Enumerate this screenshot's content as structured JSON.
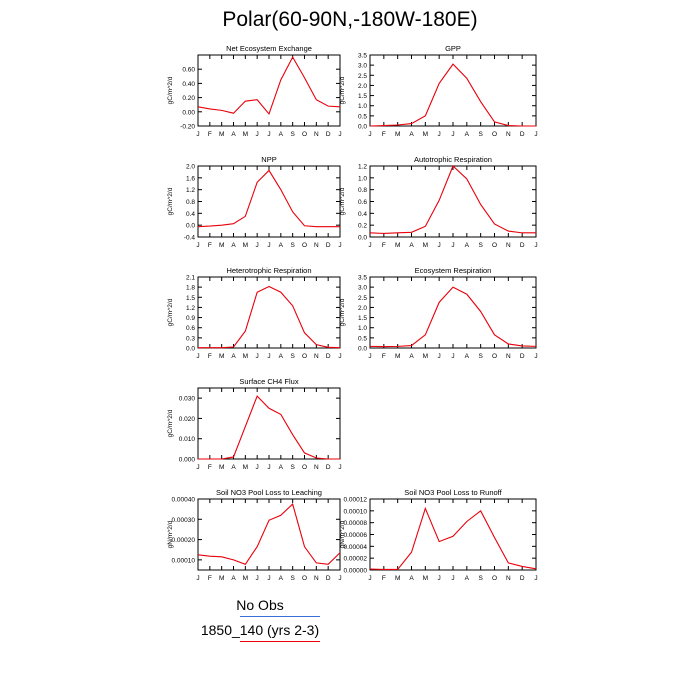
{
  "title": "Polar(60-90N,-180W-180E)",
  "months": [
    "J",
    "F",
    "M",
    "A",
    "M",
    "J",
    "J",
    "A",
    "S",
    "O",
    "N",
    "D",
    "J"
  ],
  "colors": {
    "line": "#e8000b",
    "obs": "#3b6fd8",
    "axis": "#000000"
  },
  "legend": [
    {
      "label": "No Obs",
      "color": "#3b6fd8"
    },
    {
      "label": "1850_140 (yrs 2-3)",
      "color": "#e8000b"
    }
  ],
  "chart_data": [
    {
      "type": "line",
      "title": "Net Ecosystem Exchange",
      "ylabel": "gC/m^2/d",
      "ylim": [
        -0.2,
        0.8
      ],
      "yticks": [
        -0.2,
        0.0,
        0.2,
        0.4,
        0.6
      ],
      "ytick_labels": [
        "-0.20",
        "0.00",
        "0.20",
        "0.40",
        "0.60"
      ],
      "values": [
        0.07,
        0.04,
        0.02,
        -0.02,
        0.15,
        0.17,
        -0.03,
        0.45,
        0.77,
        0.48,
        0.17,
        0.08,
        0.07
      ]
    },
    {
      "type": "line",
      "title": "GPP",
      "ylabel": "gC/m^2/d",
      "ylim": [
        0,
        3.5
      ],
      "yticks": [
        0,
        0.5,
        1.0,
        1.5,
        2.0,
        2.5,
        3.0,
        3.5
      ],
      "ytick_labels": [
        "0.0",
        "0.5",
        "1.0",
        "1.5",
        "2.0",
        "2.5",
        "3.0",
        "3.5"
      ],
      "values": [
        0.0,
        0.02,
        0.05,
        0.12,
        0.5,
        2.1,
        3.05,
        2.35,
        1.2,
        0.2,
        0.02,
        0.0,
        0.0
      ]
    },
    {
      "type": "line",
      "title": "NPP",
      "ylabel": "gC/m^2/d",
      "ylim": [
        -0.4,
        2.0
      ],
      "yticks": [
        -0.4,
        0.0,
        0.4,
        0.8,
        1.2,
        1.6,
        2.0
      ],
      "ytick_labels": [
        "-0.4",
        "0.0",
        "0.4",
        "0.8",
        "1.2",
        "1.6",
        "2.0"
      ],
      "values": [
        -0.05,
        -0.03,
        0.0,
        0.05,
        0.3,
        1.45,
        1.85,
        1.2,
        0.45,
        -0.02,
        -0.05,
        -0.05,
        -0.05
      ]
    },
    {
      "type": "line",
      "title": "Autotrophic Respiration",
      "ylabel": "gC/m^2/d",
      "ylim": [
        0,
        1.2
      ],
      "yticks": [
        0,
        0.2,
        0.4,
        0.6,
        0.8,
        1.0,
        1.2
      ],
      "ytick_labels": [
        "0.0",
        "0.2",
        "0.4",
        "0.6",
        "0.8",
        "1.0",
        "1.2"
      ],
      "values": [
        0.07,
        0.06,
        0.07,
        0.08,
        0.18,
        0.62,
        1.2,
        0.98,
        0.55,
        0.22,
        0.1,
        0.07,
        0.07
      ]
    },
    {
      "type": "line",
      "title": "Heterotrophic Respiration",
      "ylabel": "gC/m^2/d",
      "ylim": [
        0,
        2.1
      ],
      "yticks": [
        0,
        0.3,
        0.6,
        0.9,
        1.2,
        1.5,
        1.8,
        2.1
      ],
      "ytick_labels": [
        "0.0",
        "0.3",
        "0.6",
        "0.9",
        "1.2",
        "1.5",
        "1.8",
        "2.1"
      ],
      "values": [
        0.01,
        0.01,
        0.01,
        0.03,
        0.5,
        1.65,
        1.82,
        1.65,
        1.25,
        0.45,
        0.1,
        0.02,
        0.01
      ]
    },
    {
      "type": "line",
      "title": "Ecosystem Respiration",
      "ylabel": "gC/m^2/d",
      "ylim": [
        0,
        3.5
      ],
      "yticks": [
        0,
        0.5,
        1.0,
        1.5,
        2.0,
        2.5,
        3.0,
        3.5
      ],
      "ytick_labels": [
        "0.0",
        "0.5",
        "1.0",
        "1.5",
        "2.0",
        "2.5",
        "3.0",
        "3.5"
      ],
      "values": [
        0.08,
        0.07,
        0.08,
        0.12,
        0.65,
        2.25,
        3.0,
        2.65,
        1.8,
        0.65,
        0.2,
        0.1,
        0.08
      ]
    },
    {
      "type": "line",
      "title": "Surface CH4 Flux",
      "ylabel": "gC/m^2/d",
      "ylim": [
        0,
        0.035
      ],
      "yticks": [
        0,
        0.01,
        0.02,
        0.03
      ],
      "ytick_labels": [
        "0.000",
        "0.010",
        "0.020",
        "0.030"
      ],
      "values": [
        0.0,
        0.0,
        0.0,
        0.001,
        0.016,
        0.031,
        0.025,
        0.022,
        0.012,
        0.003,
        0.0005,
        0.0,
        0.0
      ]
    },
    {
      "type": "line",
      "title": "Soil NO3 Pool Loss to Leaching",
      "ylabel": "gN/m^2/d",
      "ylim": [
        5e-05,
        0.0004
      ],
      "yticks": [
        0.0001,
        0.0002,
        0.0003,
        0.0004
      ],
      "ytick_labels": [
        "0.00010",
        "0.00020",
        "0.00030",
        "0.00040"
      ],
      "values": [
        0.000125,
        0.000118,
        0.000115,
        0.0001,
        7.8e-05,
        0.000165,
        0.000295,
        0.00032,
        0.000375,
        0.000165,
        8.5e-05,
        7.8e-05,
        0.000135
      ]
    },
    {
      "type": "line",
      "title": "Soil NO3 Pool Loss to Runoff",
      "ylabel": "gN/m^2/d",
      "ylim": [
        0,
        0.00012
      ],
      "yticks": [
        0,
        2e-05,
        4e-05,
        6e-05,
        8e-05,
        0.0001,
        0.00012
      ],
      "ytick_labels": [
        "0.00000",
        "0.00002",
        "0.00004",
        "0.00006",
        "0.00008",
        "0.00010",
        "0.00012"
      ],
      "values": [
        1.5e-06,
        1e-06,
        1e-06,
        3e-05,
        0.000104,
        4.8e-05,
        5.7e-05,
        8.2e-05,
        0.0001,
        5.5e-05,
        1.2e-05,
        6e-06,
        2e-06
      ]
    }
  ]
}
